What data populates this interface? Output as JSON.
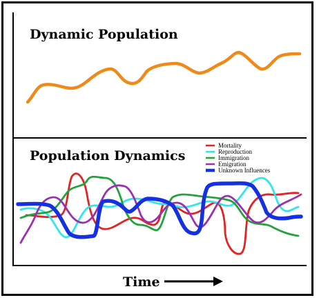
{
  "top_panel": {
    "title": "Dynamic Population",
    "line_color": "#ef8a1a"
  },
  "bottom_panel": {
    "title": "Population Dynamics",
    "legend": [
      {
        "label": "Mortality",
        "color": "#e32222"
      },
      {
        "label": "Reproduction",
        "color": "#2fe6e9"
      },
      {
        "label": "Immigration",
        "color": "#22a33a"
      },
      {
        "label": "Emigration",
        "color": "#9b2fb0"
      },
      {
        "label": "Unknown Influences",
        "color": "#1430e0"
      }
    ]
  },
  "x_axis": {
    "label": "Time",
    "arrow_icon": "right-arrow-icon"
  }
}
